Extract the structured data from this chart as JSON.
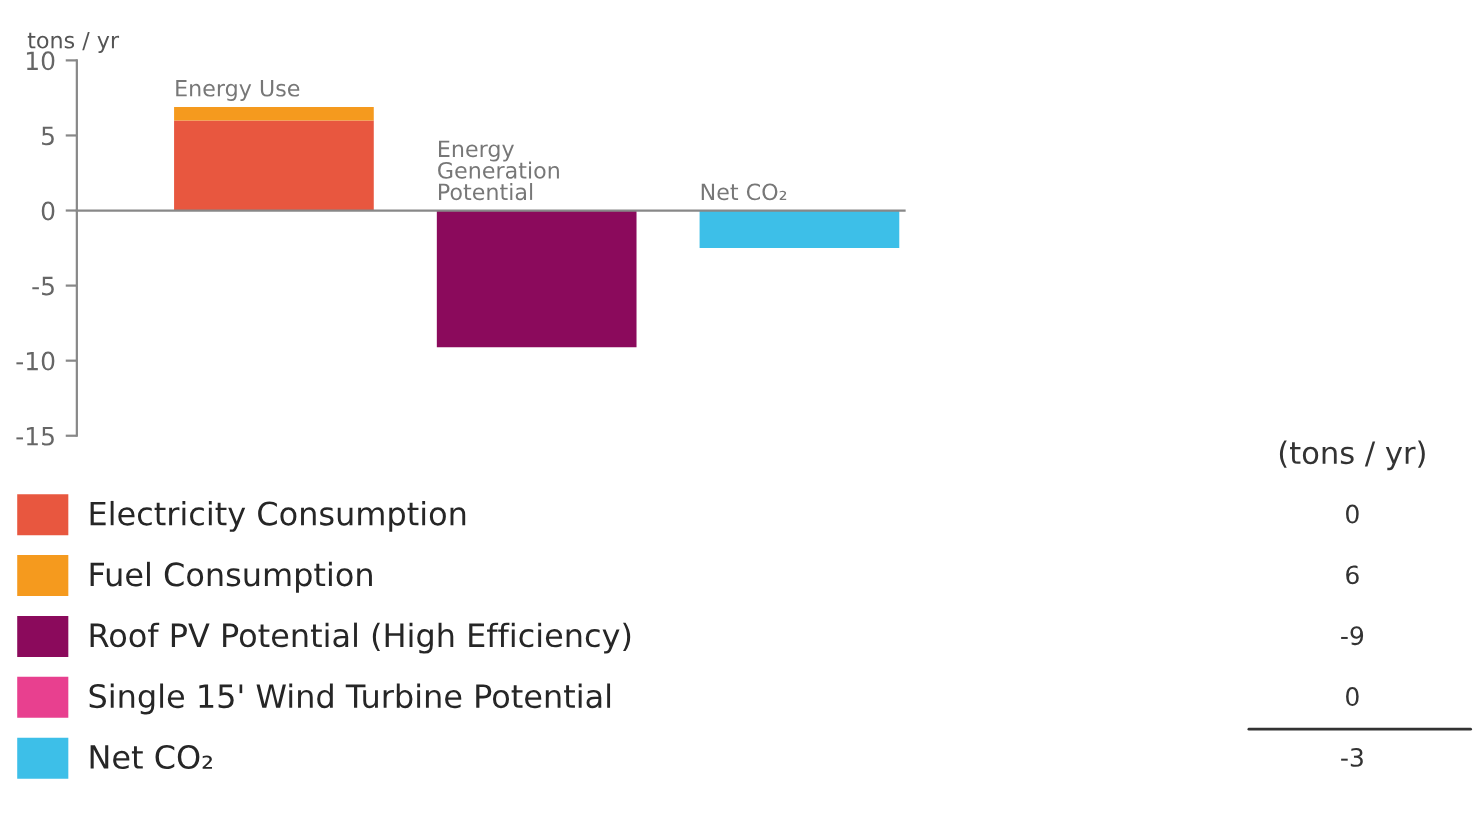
{
  "chart_data": {
    "type": "bar",
    "stacked": true,
    "ylabel": "tons / yr",
    "categories": [
      "Energy Use",
      "Energy\nGeneration\nPotential",
      "Net CO₂"
    ],
    "series": [
      {
        "name": "Electricity Consumption",
        "color": "#e8573f",
        "values": [
          6.0,
          null,
          null
        ]
      },
      {
        "name": "Fuel Consumption",
        "color": "#f59a1e",
        "values": [
          0.9,
          null,
          null
        ]
      },
      {
        "name": "Roof PV Potential (High Efficiency)",
        "color": "#8b0a5c",
        "values": [
          null,
          -9.1,
          null
        ]
      },
      {
        "name": "Single 15' Wind Turbine Potential",
        "color": "#e8408f",
        "values": [
          null,
          0,
          null
        ]
      },
      {
        "name": "Net CO₂",
        "color": "#3dbfe8",
        "values": [
          null,
          null,
          -2.5
        ]
      }
    ],
    "ylim": [
      -15,
      10
    ],
    "yticks": [
      -15,
      -10,
      -5,
      0,
      5,
      10
    ],
    "grid": false,
    "legend": "bottom left",
    "annotations": [
      "(tons / yr)",
      "0",
      "6",
      "-9",
      "0",
      "-3"
    ]
  }
}
